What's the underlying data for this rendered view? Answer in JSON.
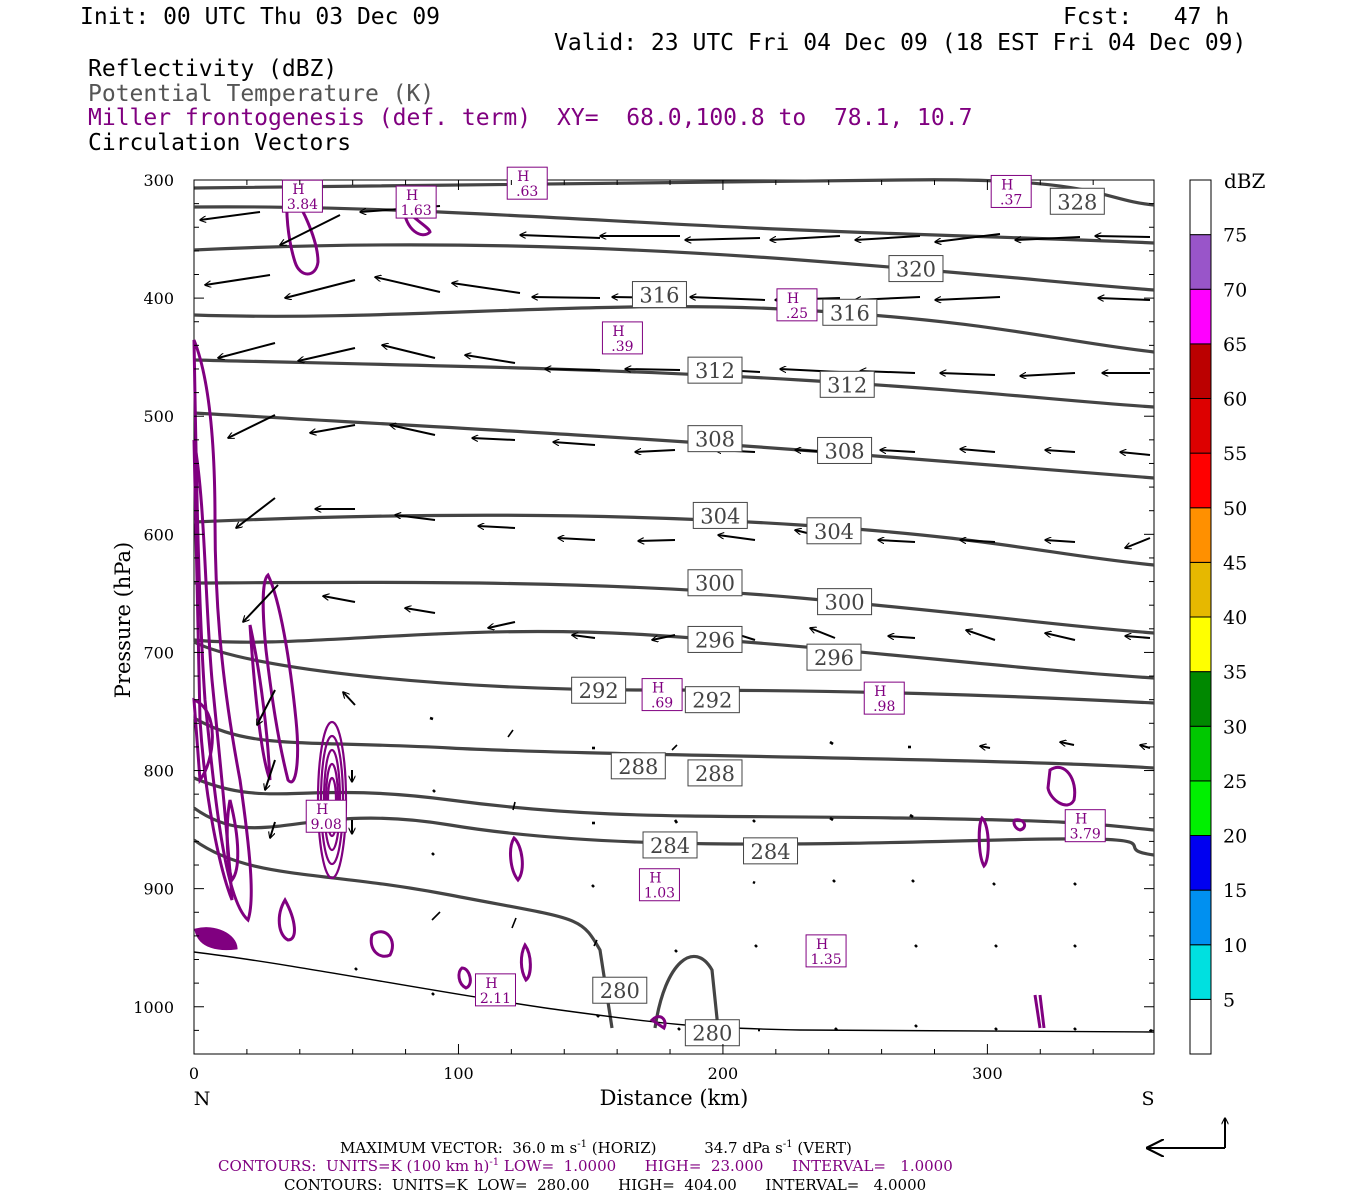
{
  "header": {
    "init": "Init: 00 UTC Thu 03 Dec 09",
    "fcst": "Fcst:   47 h",
    "valid": "Valid: 23 UTC Fri 04 Dec 09 (18 EST Fri 04 Dec 09)",
    "field1": "Reflectivity (dBZ)",
    "field2": "Potential Temperature (K)",
    "field3": "Miller frontogenesis (def. term)",
    "xy": "XY=  68.0,100.8 to  78.1, 10.7",
    "field4": "Circulation Vectors"
  },
  "chart_data": {
    "type": "cross-section",
    "ylabel": "Pressure (hPa)",
    "xlabel": "Distance (km)",
    "xlim": [
      0,
      363
    ],
    "ylim": [
      1040,
      300
    ],
    "x_ticks": [
      0,
      100,
      200,
      300
    ],
    "y_ticks": [
      300,
      400,
      500,
      600,
      700,
      800,
      900,
      1000
    ],
    "left_end_label": "N",
    "right_end_label": "S",
    "colorbar": {
      "title": "dBZ",
      "levels": [
        5,
        10,
        15,
        20,
        25,
        30,
        35,
        40,
        45,
        50,
        55,
        60,
        65,
        70,
        75
      ],
      "colors": [
        "#00e0e0",
        "#0090f0",
        "#0000f0",
        "#00f000",
        "#00c800",
        "#008800",
        "#ffff00",
        "#e6b800",
        "#ff9000",
        "#ff0000",
        "#dd0000",
        "#bb0000",
        "#ff00ff",
        "#9955c9",
        "#ffffff"
      ]
    },
    "theta_labels": [
      {
        "value": "328",
        "x": 334,
        "p": 318
      },
      {
        "value": "320",
        "x": 273,
        "p": 375
      },
      {
        "value": "316",
        "x": 176,
        "p": 397
      },
      {
        "value": "316",
        "x": 248,
        "p": 412
      },
      {
        "value": "312",
        "x": 197,
        "p": 461
      },
      {
        "value": "312",
        "x": 247,
        "p": 473
      },
      {
        "value": "308",
        "x": 197,
        "p": 519
      },
      {
        "value": "308",
        "x": 246,
        "p": 529
      },
      {
        "value": "304",
        "x": 199,
        "p": 584
      },
      {
        "value": "304",
        "x": 242,
        "p": 597
      },
      {
        "value": "300",
        "x": 197,
        "p": 641
      },
      {
        "value": "300",
        "x": 246,
        "p": 657
      },
      {
        "value": "296",
        "x": 197,
        "p": 689
      },
      {
        "value": "296",
        "x": 242,
        "p": 704
      },
      {
        "value": "292",
        "x": 153,
        "p": 732
      },
      {
        "value": "292",
        "x": 196,
        "p": 740
      },
      {
        "value": "288",
        "x": 168,
        "p": 796
      },
      {
        "value": "288",
        "x": 197,
        "p": 802
      },
      {
        "value": "284",
        "x": 180,
        "p": 863
      },
      {
        "value": "284",
        "x": 218,
        "p": 868
      },
      {
        "value": "280",
        "x": 161,
        "p": 986
      },
      {
        "value": "280",
        "x": 196,
        "p": 1022
      }
    ],
    "frontogenesis_maxima": [
      {
        "value": "3.84",
        "x": 41,
        "p": 312
      },
      {
        "value": "1.63",
        "x": 84,
        "p": 317
      },
      {
        "value": ".63",
        "x": 126,
        "p": 301
      },
      {
        "value": ".37",
        "x": 309,
        "p": 308
      },
      {
        "value": ".25",
        "x": 228,
        "p": 404
      },
      {
        "value": ".39",
        "x": 162,
        "p": 432
      },
      {
        "value": ".69",
        "x": 177,
        "p": 734
      },
      {
        "value": ".98",
        "x": 261,
        "p": 737
      },
      {
        "value": "9.08",
        "x": 50,
        "p": 837
      },
      {
        "value": "3.79",
        "x": 337,
        "p": 845
      },
      {
        "value": "1.03",
        "x": 176,
        "p": 895
      },
      {
        "value": "1.35",
        "x": 239,
        "p": 951
      },
      {
        "value": "2.11",
        "x": 114,
        "p": 984
      }
    ],
    "theta_units": "K",
    "theta_range": {
      "low": "280.00",
      "high": "404.00",
      "interval": "4.0000"
    },
    "frontogenesis_range": {
      "low": "1.0000",
      "high": "23.000",
      "interval": "1.0000"
    }
  },
  "footer": {
    "maxvec_label": "MAXIMUM VECTOR:",
    "horiz_val": "36.0 m s",
    "horiz_sup": "-1",
    "horiz_tag": "(HORIZ)",
    "vert_val": "34.7 dPa s",
    "vert_sup": "-1",
    "vert_tag": "(VERT)",
    "c1_a": "CONTOURS:  UNITS=K (100 km h)",
    "c1_sup": "-1",
    "c1_b": " LOW=  1.0000      HIGH=  23.000      INTERVAL=   1.0000",
    "c2": "CONTOURS:  UNITS=K  LOW=  280.00      HIGH=  404.00      INTERVAL=   4.0000"
  },
  "colors": {
    "theta": "#444444",
    "fronto": "#800080",
    "vector": "#000000"
  }
}
